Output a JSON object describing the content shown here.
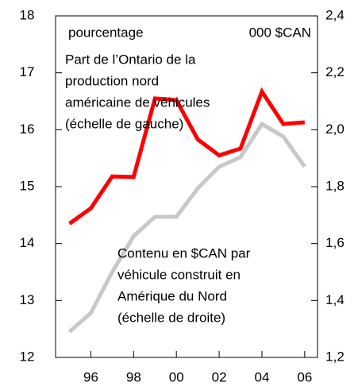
{
  "chart_data": {
    "type": "line",
    "left_unit": "pourcentage",
    "right_unit": "000 $CAN",
    "annotations": [
      [
        "Part de l’Ontario de la",
        "production nord",
        "américaine de véhicules",
        "(échelle de gauche)"
      ],
      [
        "Contenu en $CAN par",
        "véhicule construit en",
        "Amérique du Nord",
        "(échelle de droite)"
      ]
    ],
    "x": [
      1995,
      1996,
      1997,
      1998,
      1999,
      2000,
      2001,
      2002,
      2003,
      2004,
      2005,
      2006
    ],
    "xlim": [
      1994.35,
      2006.6
    ],
    "xticks": [
      {
        "value": 1996,
        "label": "96"
      },
      {
        "value": 1998,
        "label": "98"
      },
      {
        "value": 2000,
        "label": "00"
      },
      {
        "value": 2002,
        "label": "02"
      },
      {
        "value": 2004,
        "label": "04"
      },
      {
        "value": 2006,
        "label": "06"
      }
    ],
    "ylim": [
      12,
      18
    ],
    "yticks": [
      12,
      13,
      14,
      15,
      16,
      17,
      18
    ],
    "y2lim": [
      1.2,
      2.4
    ],
    "y2ticks": [
      {
        "value": 1.2,
        "label": "1,2"
      },
      {
        "value": 1.4,
        "label": "1,4"
      },
      {
        "value": 1.6,
        "label": "1,6"
      },
      {
        "value": 1.8,
        "label": "1,8"
      },
      {
        "value": 2.0,
        "label": "2,0"
      },
      {
        "value": 2.2,
        "label": "2,2"
      },
      {
        "value": 2.4,
        "label": "2,4"
      }
    ],
    "series": [
      {
        "color": "#ff0000",
        "values": [
          14.35,
          14.62,
          15.18,
          15.17,
          16.55,
          16.52,
          15.83,
          15.55,
          15.67,
          16.67,
          16.1,
          16.13
        ]
      },
      {
        "color": "#c8c8c8",
        "axis": "y2",
        "values": [
          1.29,
          1.356,
          1.5,
          1.626,
          1.694,
          1.694,
          1.794,
          1.87,
          1.904,
          2.02,
          1.976,
          1.87
        ]
      }
    ]
  }
}
